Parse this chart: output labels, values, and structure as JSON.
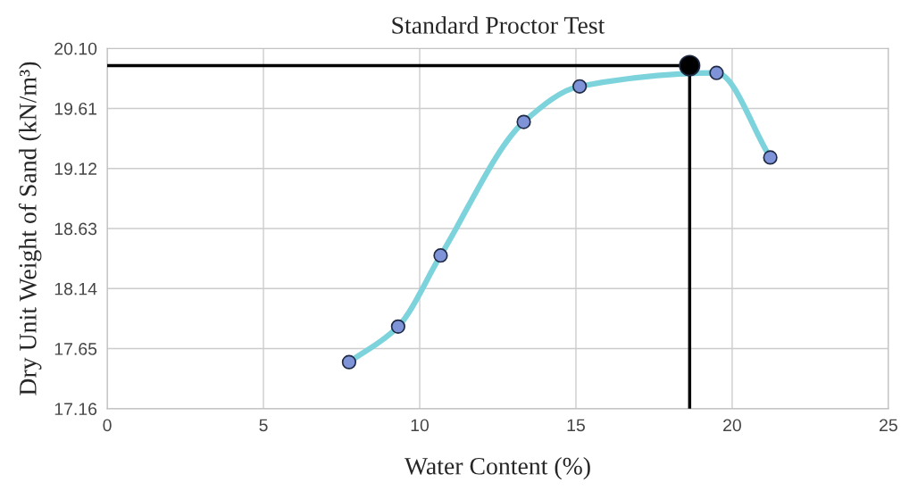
{
  "chart_data": {
    "type": "line",
    "title": "Standard Proctor Test",
    "xlabel": "Water Content (%)",
    "ylabel": "Dry Unit Weight of Sand (kN/m³)",
    "xlim": [
      0,
      25
    ],
    "xticks": [
      0,
      5,
      10,
      15,
      20,
      25
    ],
    "ylim": [
      17.16,
      20.1
    ],
    "yticks": [
      {
        "value": 17.16,
        "label": "17.16"
      },
      17.65,
      18.14,
      18.63,
      19.12,
      19.61,
      {
        "value": 20.1,
        "label": "20.10"
      }
    ],
    "grid": true,
    "legend": false,
    "series": [
      {
        "color": "#7dd3dc",
        "marker": "none",
        "line_style": "solid",
        "x": [
          7.74,
          9.31,
          10.67,
          13.33,
          15.12,
          19.5,
          21.22
        ],
        "values": [
          17.54,
          17.83,
          18.41,
          19.5,
          19.79,
          19.9,
          19.21
        ]
      },
      {
        "type": "scatter",
        "color": "#7f93d8",
        "marker": "circle",
        "x": [
          7.74,
          9.31,
          10.67,
          13.33,
          15.12,
          19.5,
          21.22
        ],
        "values": [
          17.54,
          17.83,
          18.41,
          19.5,
          19.79,
          19.9,
          19.21
        ]
      },
      {
        "type": "line",
        "color": "#000000",
        "marker": "none",
        "line_style": "solid",
        "x": [
          0,
          18.64,
          18.64
        ],
        "values": [
          19.96,
          19.96,
          17.16
        ]
      },
      {
        "type": "scatter",
        "color": "#000000",
        "marker": "circle",
        "x": [
          18.64
        ],
        "values": [
          19.96
        ]
      }
    ]
  }
}
